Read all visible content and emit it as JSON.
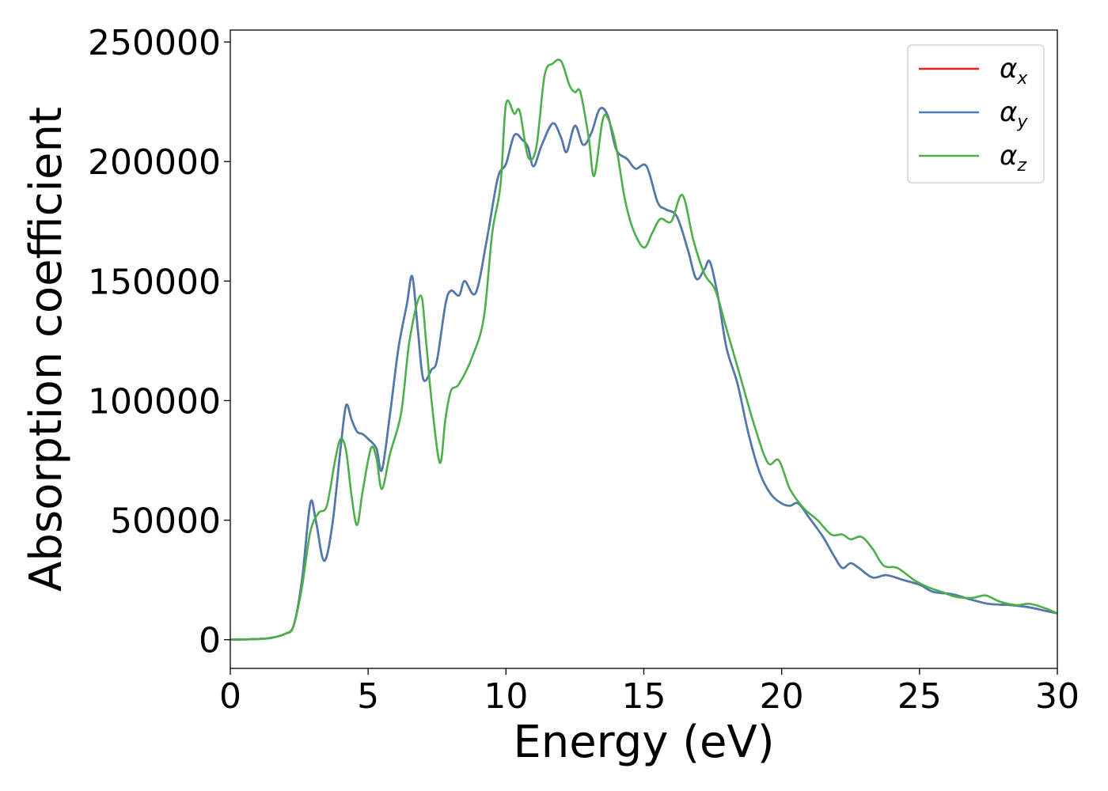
{
  "chart_data": {
    "type": "line",
    "title": "",
    "xlabel": "Energy (eV)",
    "ylabel": "Absorption coefficient",
    "xlim": [
      0,
      30
    ],
    "ylim": [
      -12000,
      255000
    ],
    "xticks": [
      0,
      5,
      10,
      15,
      20,
      25,
      30
    ],
    "xtick_labels": [
      "0",
      "5",
      "10",
      "15",
      "20",
      "25",
      "30"
    ],
    "yticks": [
      0,
      50000,
      100000,
      150000,
      200000,
      250000
    ],
    "ytick_labels": [
      "0",
      "50000",
      "100000",
      "150000",
      "200000",
      "250000"
    ],
    "grid": false,
    "legend_position": "top-right",
    "series": [
      {
        "name": "α_x",
        "legend_main": "α",
        "legend_sub": "x",
        "color": "#e41a1c",
        "points": [
          [
            0,
            0
          ],
          [
            1,
            300
          ],
          [
            1.5,
            800
          ],
          [
            2,
            2500
          ],
          [
            2.3,
            6000
          ],
          [
            2.6,
            25000
          ],
          [
            2.9,
            57000
          ],
          [
            3.1,
            50000
          ],
          [
            3.4,
            33000
          ],
          [
            3.7,
            48000
          ],
          [
            4,
            80000
          ],
          [
            4.2,
            98000
          ],
          [
            4.4,
            92000
          ],
          [
            4.6,
            87000
          ],
          [
            4.8,
            86000
          ],
          [
            5,
            84000
          ],
          [
            5.3,
            80000
          ],
          [
            5.5,
            71000
          ],
          [
            5.8,
            95000
          ],
          [
            6.1,
            122000
          ],
          [
            6.4,
            140000
          ],
          [
            6.6,
            152000
          ],
          [
            6.8,
            130000
          ],
          [
            7,
            109000
          ],
          [
            7.3,
            113000
          ],
          [
            7.5,
            117000
          ],
          [
            7.8,
            140000
          ],
          [
            8,
            146000
          ],
          [
            8.3,
            144000
          ],
          [
            8.5,
            150000
          ],
          [
            8.9,
            145000
          ],
          [
            9.3,
            167000
          ],
          [
            9.7,
            193000
          ],
          [
            10,
            199000
          ],
          [
            10.3,
            211000
          ],
          [
            10.6,
            209000
          ],
          [
            10.8,
            206000
          ],
          [
            11,
            198000
          ],
          [
            11.3,
            207000
          ],
          [
            11.7,
            216000
          ],
          [
            12,
            210000
          ],
          [
            12.2,
            204000
          ],
          [
            12.5,
            215000
          ],
          [
            12.8,
            207000
          ],
          [
            13.1,
            212000
          ],
          [
            13.4,
            222000
          ],
          [
            13.7,
            219000
          ],
          [
            14,
            205000
          ],
          [
            14.4,
            201000
          ],
          [
            14.7,
            197000
          ],
          [
            15.1,
            198000
          ],
          [
            15.5,
            183000
          ],
          [
            15.8,
            180000
          ],
          [
            16.2,
            177000
          ],
          [
            16.6,
            163000
          ],
          [
            16.9,
            151000
          ],
          [
            17.2,
            155000
          ],
          [
            17.4,
            158000
          ],
          [
            17.7,
            143000
          ],
          [
            18,
            122000
          ],
          [
            18.4,
            107000
          ],
          [
            18.8,
            86000
          ],
          [
            19.2,
            70000
          ],
          [
            19.6,
            61000
          ],
          [
            20,
            57000
          ],
          [
            20.3,
            56000
          ],
          [
            20.6,
            57000
          ],
          [
            21,
            51000
          ],
          [
            21.5,
            43000
          ],
          [
            21.9,
            35000
          ],
          [
            22.2,
            30000
          ],
          [
            22.5,
            32000
          ],
          [
            22.8,
            30000
          ],
          [
            23.3,
            26000
          ],
          [
            23.8,
            27000
          ],
          [
            24.4,
            25000
          ],
          [
            25,
            23000
          ],
          [
            25.5,
            20000
          ],
          [
            26.2,
            19000
          ],
          [
            26.8,
            17000
          ],
          [
            27.5,
            15000
          ],
          [
            28.3,
            14500
          ],
          [
            29,
            13500
          ],
          [
            29.6,
            12000
          ],
          [
            30,
            11000
          ]
        ]
      },
      {
        "name": "α_y",
        "legend_main": "α",
        "legend_sub": "y",
        "color": "#4a7cb0",
        "points": [
          [
            0,
            0
          ],
          [
            1,
            300
          ],
          [
            1.5,
            800
          ],
          [
            2,
            2500
          ],
          [
            2.3,
            6000
          ],
          [
            2.6,
            25000
          ],
          [
            2.9,
            57000
          ],
          [
            3.1,
            50000
          ],
          [
            3.4,
            33000
          ],
          [
            3.7,
            48000
          ],
          [
            4,
            80000
          ],
          [
            4.2,
            98000
          ],
          [
            4.4,
            92000
          ],
          [
            4.6,
            87000
          ],
          [
            4.8,
            86000
          ],
          [
            5,
            84000
          ],
          [
            5.3,
            80000
          ],
          [
            5.5,
            71000
          ],
          [
            5.8,
            95000
          ],
          [
            6.1,
            122000
          ],
          [
            6.4,
            140000
          ],
          [
            6.6,
            152000
          ],
          [
            6.8,
            130000
          ],
          [
            7,
            109000
          ],
          [
            7.3,
            113000
          ],
          [
            7.5,
            117000
          ],
          [
            7.8,
            140000
          ],
          [
            8,
            146000
          ],
          [
            8.3,
            144000
          ],
          [
            8.5,
            150000
          ],
          [
            8.9,
            145000
          ],
          [
            9.3,
            167000
          ],
          [
            9.7,
            193000
          ],
          [
            10,
            199000
          ],
          [
            10.3,
            211000
          ],
          [
            10.6,
            209000
          ],
          [
            10.8,
            206000
          ],
          [
            11,
            198000
          ],
          [
            11.3,
            207000
          ],
          [
            11.7,
            216000
          ],
          [
            12,
            210000
          ],
          [
            12.2,
            204000
          ],
          [
            12.5,
            215000
          ],
          [
            12.8,
            207000
          ],
          [
            13.1,
            212000
          ],
          [
            13.4,
            222000
          ],
          [
            13.7,
            219000
          ],
          [
            14,
            205000
          ],
          [
            14.4,
            201000
          ],
          [
            14.7,
            197000
          ],
          [
            15.1,
            198000
          ],
          [
            15.5,
            183000
          ],
          [
            15.8,
            180000
          ],
          [
            16.2,
            177000
          ],
          [
            16.6,
            163000
          ],
          [
            16.9,
            151000
          ],
          [
            17.2,
            155000
          ],
          [
            17.4,
            158000
          ],
          [
            17.7,
            143000
          ],
          [
            18,
            122000
          ],
          [
            18.4,
            107000
          ],
          [
            18.8,
            86000
          ],
          [
            19.2,
            70000
          ],
          [
            19.6,
            61000
          ],
          [
            20,
            57000
          ],
          [
            20.3,
            56000
          ],
          [
            20.6,
            57000
          ],
          [
            21,
            51000
          ],
          [
            21.5,
            43000
          ],
          [
            21.9,
            35000
          ],
          [
            22.2,
            30000
          ],
          [
            22.5,
            32000
          ],
          [
            22.8,
            30000
          ],
          [
            23.3,
            26000
          ],
          [
            23.8,
            27000
          ],
          [
            24.4,
            25000
          ],
          [
            25,
            23000
          ],
          [
            25.5,
            20000
          ],
          [
            26.2,
            19000
          ],
          [
            26.8,
            17000
          ],
          [
            27.5,
            15000
          ],
          [
            28.3,
            14500
          ],
          [
            29,
            13500
          ],
          [
            29.6,
            12000
          ],
          [
            30,
            11000
          ]
        ]
      },
      {
        "name": "α_z",
        "legend_main": "α",
        "legend_sub": "z",
        "color": "#4daf4a",
        "points": [
          [
            0,
            0
          ],
          [
            1,
            300
          ],
          [
            1.5,
            800
          ],
          [
            2,
            2500
          ],
          [
            2.3,
            6000
          ],
          [
            2.6,
            22000
          ],
          [
            2.9,
            45000
          ],
          [
            3.2,
            53000
          ],
          [
            3.5,
            56000
          ],
          [
            3.8,
            75000
          ],
          [
            4,
            84000
          ],
          [
            4.2,
            79000
          ],
          [
            4.4,
            60000
          ],
          [
            4.6,
            48000
          ],
          [
            4.8,
            62000
          ],
          [
            5.1,
            80000
          ],
          [
            5.3,
            76000
          ],
          [
            5.5,
            63000
          ],
          [
            5.8,
            78000
          ],
          [
            6.2,
            95000
          ],
          [
            6.5,
            125000
          ],
          [
            6.9,
            144000
          ],
          [
            7.1,
            125000
          ],
          [
            7.3,
            100000
          ],
          [
            7.6,
            74000
          ],
          [
            7.8,
            92000
          ],
          [
            8,
            104000
          ],
          [
            8.3,
            107000
          ],
          [
            8.8,
            119000
          ],
          [
            9.2,
            135000
          ],
          [
            9.5,
            170000
          ],
          [
            9.8,
            190000
          ],
          [
            10,
            224000
          ],
          [
            10.3,
            220000
          ],
          [
            10.5,
            221000
          ],
          [
            10.8,
            202000
          ],
          [
            11.1,
            206000
          ],
          [
            11.4,
            236000
          ],
          [
            11.7,
            241000
          ],
          [
            12,
            242000
          ],
          [
            12.3,
            232000
          ],
          [
            12.5,
            229000
          ],
          [
            12.7,
            229000
          ],
          [
            13,
            210000
          ],
          [
            13.2,
            194000
          ],
          [
            13.5,
            217000
          ],
          [
            13.7,
            218000
          ],
          [
            14,
            206000
          ],
          [
            14.3,
            185000
          ],
          [
            14.6,
            172000
          ],
          [
            15,
            164000
          ],
          [
            15.3,
            170000
          ],
          [
            15.6,
            176000
          ],
          [
            16,
            175000
          ],
          [
            16.4,
            186000
          ],
          [
            16.8,
            167000
          ],
          [
            17.2,
            153000
          ],
          [
            17.6,
            146000
          ],
          [
            18,
            130000
          ],
          [
            18.5,
            110000
          ],
          [
            19,
            90000
          ],
          [
            19.5,
            74000
          ],
          [
            19.9,
            75000
          ],
          [
            20.3,
            63000
          ],
          [
            20.8,
            55000
          ],
          [
            21.3,
            50000
          ],
          [
            21.8,
            44000
          ],
          [
            22.2,
            44000
          ],
          [
            22.5,
            42000
          ],
          [
            22.9,
            43000
          ],
          [
            23.3,
            38000
          ],
          [
            23.7,
            31000
          ],
          [
            24.2,
            30000
          ],
          [
            24.8,
            25000
          ],
          [
            25.3,
            22000
          ],
          [
            25.8,
            20000
          ],
          [
            26.3,
            18000
          ],
          [
            26.9,
            17500
          ],
          [
            27.4,
            18500
          ],
          [
            27.9,
            16000
          ],
          [
            28.5,
            14500
          ],
          [
            29,
            15000
          ],
          [
            29.6,
            13000
          ],
          [
            30,
            11000
          ]
        ]
      }
    ]
  }
}
